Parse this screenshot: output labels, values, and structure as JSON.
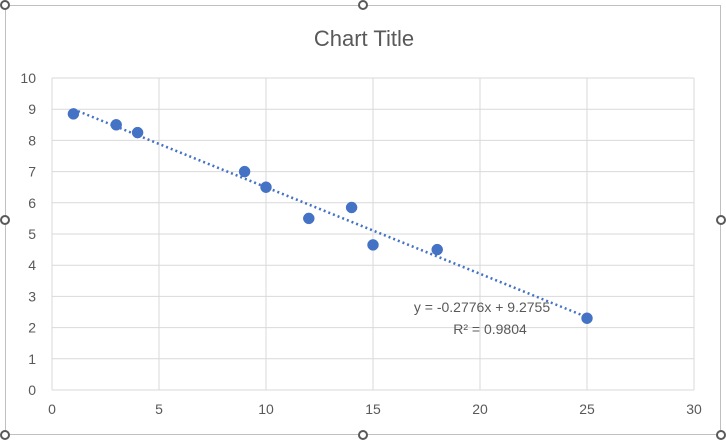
{
  "chart_data": {
    "type": "scatter",
    "title": "Chart Title",
    "xlabel": "",
    "ylabel": "",
    "xlim": [
      0,
      30
    ],
    "ylim": [
      0,
      10
    ],
    "x_ticks": [
      0,
      5,
      10,
      15,
      20,
      25,
      30
    ],
    "y_ticks": [
      0,
      1,
      2,
      3,
      4,
      5,
      6,
      7,
      8,
      9,
      10
    ],
    "grid": true,
    "legend": "none",
    "marker_color": "#4472C4",
    "series": [
      {
        "points": [
          {
            "x": 1,
            "y": 8.85
          },
          {
            "x": 3,
            "y": 8.5
          },
          {
            "x": 4,
            "y": 8.25
          },
          {
            "x": 9,
            "y": 7.0
          },
          {
            "x": 10,
            "y": 6.5
          },
          {
            "x": 12,
            "y": 5.5
          },
          {
            "x": 14,
            "y": 5.85
          },
          {
            "x": 15,
            "y": 4.65
          },
          {
            "x": 18,
            "y": 4.5
          },
          {
            "x": 25,
            "y": 2.3
          }
        ]
      }
    ],
    "trendline": {
      "type": "linear",
      "style": "dotted",
      "slope": -0.2776,
      "intercept": 9.2755,
      "x_range": [
        1,
        25
      ],
      "equation": "y = -0.2776x + 9.2755",
      "r_squared": "R² = 0.9804"
    }
  }
}
